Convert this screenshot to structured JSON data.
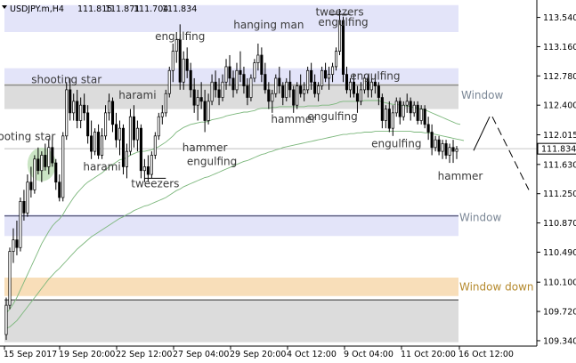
{
  "chart_data": {
    "type": "candlestick",
    "symbol_label": "USDJPY.m,H4",
    "ohlc_header": {
      "open": "111.815",
      "high": "111.871",
      "low": "111.704",
      "close": "111.834"
    },
    "price_label": "111.834",
    "last_price": 111.834,
    "y_ticks": [
      "113.540",
      "113.160",
      "112.780",
      "112.400",
      "112.015",
      "111.630",
      "111.250",
      "110.870",
      "110.490",
      "110.100",
      "109.720",
      "109.340"
    ],
    "ylim": [
      109.27,
      113.72
    ],
    "x_ticks": [
      "15 Sep 2017",
      "19 Sep 20:00",
      "22 Sep 12:00",
      "27 Sep 04:00",
      "29 Sep 20:00",
      "4 Oct 12:00",
      "9 Oct 04:00",
      "11 Oct 20:00",
      "16 Oct 12:00"
    ],
    "zones": [
      {
        "type": "blue",
        "from": 113.35,
        "to": 113.7
      },
      {
        "type": "blue",
        "from": 112.62,
        "to": 112.88
      },
      {
        "type": "gray",
        "from": 112.35,
        "to": 112.68,
        "label": "Window"
      },
      {
        "type": "blue",
        "from": 110.7,
        "to": 110.98,
        "label": "Window"
      },
      {
        "type": "orange",
        "from": 109.92,
        "to": 110.16,
        "label": "Window down"
      },
      {
        "type": "gray",
        "from": 109.32,
        "to": 109.88
      }
    ],
    "labels": {
      "window_upper": "Window",
      "window_lower": "Window",
      "window_down": "Window down"
    },
    "patterns": [
      {
        "text": "shooting star",
        "bar": 4,
        "price": 111.99
      },
      {
        "text": "shooting star",
        "bar": 17,
        "price": 112.73
      },
      {
        "text": "harami",
        "bar": 27,
        "price": 111.6
      },
      {
        "text": "harami",
        "bar": 37,
        "price": 112.53
      },
      {
        "text": "tweezers",
        "bar": 42,
        "price": 111.38
      },
      {
        "text": "engulfing",
        "bar": 49,
        "price": 113.29
      },
      {
        "text": "hammer",
        "bar": 56,
        "price": 111.85
      },
      {
        "text": "engulfing",
        "bar": 58,
        "price": 111.67
      },
      {
        "text": "hanging man",
        "bar": 74,
        "price": 113.44
      },
      {
        "text": "hammer",
        "bar": 81,
        "price": 112.22
      },
      {
        "text": "tweezers",
        "bar": 94,
        "price": 113.61
      },
      {
        "text": "engulfing",
        "bar": 95,
        "price": 113.48
      },
      {
        "text": "engulfing",
        "bar": 92,
        "price": 112.25
      },
      {
        "text": "engulfing",
        "bar": 104,
        "price": 112.78
      },
      {
        "text": "engulfing",
        "bar": 110,
        "price": 111.9
      },
      {
        "text": "hammer",
        "bar": 128,
        "price": 111.48
      }
    ],
    "candles": [
      [
        109.42,
        109.9,
        109.35,
        109.8
      ],
      [
        109.8,
        110.55,
        109.75,
        110.5
      ],
      [
        110.5,
        110.8,
        110.35,
        110.65
      ],
      [
        110.65,
        110.9,
        110.45,
        110.55
      ],
      [
        110.55,
        111.2,
        110.5,
        111.15
      ],
      [
        111.15,
        111.3,
        110.9,
        111
      ],
      [
        111,
        111.5,
        110.95,
        111.4
      ],
      [
        111.4,
        111.6,
        111.2,
        111.3
      ],
      [
        111.3,
        111.75,
        111.25,
        111.7
      ],
      [
        111.7,
        111.85,
        111.5,
        111.55
      ],
      [
        111.55,
        111.8,
        111.4,
        111.75
      ],
      [
        111.75,
        111.9,
        111.55,
        111.6
      ],
      [
        111.6,
        111.95,
        111.5,
        111.85
      ],
      [
        111.85,
        112,
        111.6,
        111.65
      ],
      [
        111.65,
        111.7,
        111.3,
        111.4
      ],
      [
        111.4,
        111.5,
        111.15,
        111.2
      ],
      [
        111.2,
        112.05,
        111.15,
        112
      ],
      [
        112,
        112.7,
        111.95,
        112.6
      ],
      [
        112.6,
        112.75,
        112.2,
        112.3
      ],
      [
        112.3,
        112.55,
        112.2,
        112.45
      ],
      [
        112.45,
        112.6,
        112.1,
        112.2
      ],
      [
        112.2,
        112.5,
        112.1,
        112.4
      ],
      [
        112.4,
        112.55,
        112.2,
        112.3
      ],
      [
        112.3,
        112.4,
        111.9,
        112
      ],
      [
        112,
        112.2,
        111.7,
        111.8
      ],
      [
        111.8,
        112.1,
        111.75,
        112.05
      ],
      [
        112.05,
        112.15,
        111.7,
        111.75
      ],
      [
        111.75,
        112.1,
        111.7,
        112
      ],
      [
        112,
        112.4,
        111.95,
        112.3
      ],
      [
        112.3,
        112.55,
        112.2,
        112.45
      ],
      [
        112.45,
        112.5,
        112.05,
        112.15
      ],
      [
        112.15,
        112.3,
        111.85,
        111.95
      ],
      [
        111.95,
        112.2,
        111.75,
        112.1
      ],
      [
        112.1,
        112.15,
        111.5,
        111.6
      ],
      [
        111.6,
        111.9,
        111.45,
        111.8
      ],
      [
        111.8,
        112.35,
        111.75,
        112.25
      ],
      [
        112.25,
        112.4,
        111.85,
        111.95
      ],
      [
        111.95,
        112.2,
        111.8,
        112.1
      ],
      [
        112.1,
        112.15,
        111.45,
        111.55
      ],
      [
        111.55,
        111.7,
        111.4,
        111.6
      ],
      [
        111.6,
        111.75,
        111.4,
        111.5
      ],
      [
        111.5,
        111.8,
        111.45,
        111.75
      ],
      [
        111.75,
        112.05,
        111.7,
        112
      ],
      [
        112,
        112.3,
        111.95,
        112.25
      ],
      [
        112.25,
        112.4,
        112.15,
        112.3
      ],
      [
        112.3,
        112.6,
        112.25,
        112.55
      ],
      [
        112.55,
        112.9,
        112.5,
        112.85
      ],
      [
        112.85,
        113.2,
        112.7,
        113.1
      ],
      [
        113.1,
        113.35,
        112.95,
        113.25
      ],
      [
        113.25,
        113.45,
        112.6,
        112.7
      ],
      [
        112.7,
        113.1,
        112.6,
        113
      ],
      [
        113,
        113.15,
        112.75,
        112.85
      ],
      [
        112.85,
        112.95,
        112.5,
        112.6
      ],
      [
        112.6,
        112.75,
        112.3,
        112.4
      ],
      [
        112.4,
        112.6,
        112.2,
        112.5
      ],
      [
        112.5,
        112.7,
        112.35,
        112.45
      ],
      [
        112.45,
        112.6,
        112.05,
        112.2
      ],
      [
        112.2,
        112.55,
        112.15,
        112.45
      ],
      [
        112.45,
        112.8,
        112.4,
        112.7
      ],
      [
        112.7,
        112.85,
        112.5,
        112.6
      ],
      [
        112.6,
        112.75,
        112.4,
        112.5
      ],
      [
        112.5,
        112.8,
        112.45,
        112.7
      ],
      [
        112.7,
        113,
        112.6,
        112.9
      ],
      [
        112.9,
        113.05,
        112.65,
        112.75
      ],
      [
        112.75,
        112.85,
        112.5,
        112.6
      ],
      [
        112.6,
        112.95,
        112.55,
        112.85
      ],
      [
        112.85,
        113.1,
        112.7,
        112.8
      ],
      [
        112.8,
        112.9,
        112.55,
        112.65
      ],
      [
        112.65,
        112.75,
        112.4,
        112.5
      ],
      [
        112.5,
        112.8,
        112.45,
        112.75
      ],
      [
        112.75,
        113,
        112.7,
        112.95
      ],
      [
        112.95,
        113.2,
        112.85,
        113.05
      ],
      [
        113.05,
        113.15,
        112.7,
        112.8
      ],
      [
        112.8,
        112.95,
        112.55,
        112.6
      ],
      [
        112.6,
        112.7,
        112.35,
        112.45
      ],
      [
        112.45,
        112.6,
        112.3,
        112.55
      ],
      [
        112.55,
        112.8,
        112.5,
        112.75
      ],
      [
        112.75,
        112.9,
        112.55,
        112.65
      ],
      [
        112.65,
        112.7,
        112.4,
        112.5
      ],
      [
        112.5,
        112.75,
        112.45,
        112.7
      ],
      [
        112.7,
        112.85,
        112.5,
        112.6
      ],
      [
        112.6,
        112.65,
        112.3,
        112.4
      ],
      [
        112.4,
        112.7,
        112.35,
        112.65
      ],
      [
        112.65,
        112.8,
        112.5,
        112.55
      ],
      [
        112.55,
        112.7,
        112.45,
        112.6
      ],
      [
        112.6,
        112.9,
        112.55,
        112.85
      ],
      [
        112.85,
        112.95,
        112.6,
        112.7
      ],
      [
        112.7,
        112.8,
        112.5,
        112.55
      ],
      [
        112.55,
        112.7,
        112.45,
        112.65
      ],
      [
        112.65,
        112.9,
        112.6,
        112.85
      ],
      [
        112.85,
        112.95,
        112.7,
        112.75
      ],
      [
        112.75,
        112.9,
        112.6,
        112.8
      ],
      [
        112.8,
        112.95,
        112.7,
        112.9
      ],
      [
        112.9,
        113.15,
        112.85,
        113.1
      ],
      [
        113.1,
        113.65,
        113.05,
        113.5
      ],
      [
        113.5,
        113.55,
        112.7,
        112.8
      ],
      [
        112.8,
        112.9,
        112.55,
        112.6
      ],
      [
        112.6,
        112.75,
        112.5,
        112.7
      ],
      [
        112.7,
        112.8,
        112.5,
        112.55
      ],
      [
        112.55,
        112.65,
        112.3,
        112.45
      ],
      [
        112.45,
        112.7,
        112.4,
        112.6
      ],
      [
        112.6,
        112.8,
        112.55,
        112.75
      ],
      [
        112.75,
        112.8,
        112.5,
        112.6
      ],
      [
        112.6,
        112.75,
        112.5,
        112.7
      ],
      [
        112.7,
        112.8,
        112.55,
        112.65
      ],
      [
        112.65,
        112.7,
        112.4,
        112.5
      ],
      [
        112.5,
        112.55,
        112.1,
        112.2
      ],
      [
        112.2,
        112.4,
        112.1,
        112.35
      ],
      [
        112.35,
        112.45,
        112.05,
        112.1
      ],
      [
        112.1,
        112.4,
        112,
        112.3
      ],
      [
        112.3,
        112.5,
        112.25,
        112.45
      ],
      [
        112.45,
        112.5,
        112.15,
        112.25
      ],
      [
        112.25,
        112.45,
        112.2,
        112.4
      ],
      [
        112.4,
        112.55,
        112.3,
        112.45
      ],
      [
        112.45,
        112.5,
        112.2,
        112.3
      ],
      [
        112.3,
        112.45,
        112.25,
        112.4
      ],
      [
        112.4,
        112.45,
        112.15,
        112.2
      ],
      [
        112.2,
        112.4,
        112.15,
        112.35
      ],
      [
        112.35,
        112.4,
        112.1,
        112.15
      ],
      [
        112.15,
        112.25,
        111.95,
        112.05
      ],
      [
        112.05,
        112.15,
        111.75,
        111.85
      ],
      [
        111.85,
        112,
        111.8,
        111.95
      ],
      [
        111.95,
        112,
        111.75,
        111.8
      ],
      [
        111.8,
        111.95,
        111.7,
        111.9
      ],
      [
        111.9,
        111.95,
        111.7,
        111.75
      ],
      [
        111.75,
        111.9,
        111.65,
        111.85
      ],
      [
        111.85,
        111.95,
        111.65,
        111.8
      ],
      [
        111.8,
        111.87,
        111.7,
        111.83
      ]
    ],
    "ma_fast": [
      109.7,
      109.75,
      109.82,
      109.9,
      110,
      110.1,
      110.2,
      110.3,
      110.4,
      110.5,
      110.6,
      110.68,
      110.76,
      110.83,
      110.88,
      110.92,
      110.98,
      111.06,
      111.13,
      111.2,
      111.26,
      111.31,
      111.36,
      111.4,
      111.43,
      111.46,
      111.49,
      111.52,
      111.56,
      111.6,
      111.63,
      111.66,
      111.69,
      111.7,
      111.72,
      111.75,
      111.77,
      111.79,
      111.8,
      111.8,
      111.81,
      111.82,
      111.84,
      111.86,
      111.89,
      111.92,
      111.96,
      112,
      112.05,
      112.08,
      112.11,
      112.13,
      112.15,
      112.16,
      112.17,
      112.18,
      112.18,
      112.19,
      112.21,
      112.22,
      112.23,
      112.24,
      112.26,
      112.27,
      112.28,
      112.29,
      112.3,
      112.31,
      112.31,
      112.32,
      112.33,
      112.35,
      112.36,
      112.36,
      112.36,
      112.37,
      112.37,
      112.38,
      112.38,
      112.38,
      112.38,
      112.38,
      112.38,
      112.38,
      112.38,
      112.39,
      112.39,
      112.39,
      112.39,
      112.4,
      112.4,
      112.4,
      112.41,
      112.42,
      112.44,
      112.45,
      112.45,
      112.45,
      112.45,
      112.45,
      112.45,
      112.46,
      112.46,
      112.46,
      112.46,
      112.46,
      112.44,
      112.43,
      112.42,
      112.41,
      112.41,
      112.4,
      112.39,
      112.39,
      112.38,
      112.37,
      112.36,
      112.35,
      112.34,
      112.32,
      112.3,
      112.28,
      112.26,
      112.24,
      112.22,
      112.2,
      112.18,
      112.16,
      112.15
    ],
    "ma_slow": [
      109.5,
      109.52,
      109.56,
      109.6,
      109.66,
      109.72,
      109.78,
      109.84,
      109.9,
      109.96,
      110.02,
      110.08,
      110.14,
      110.19,
      110.24,
      110.28,
      110.33,
      110.38,
      110.43,
      110.48,
      110.53,
      110.57,
      110.61,
      110.65,
      110.69,
      110.72,
      110.75,
      110.78,
      110.81,
      110.84,
      110.87,
      110.9,
      110.93,
      110.95,
      110.98,
      111,
      111.03,
      111.05,
      111.07,
      111.09,
      111.1,
      111.12,
      111.14,
      111.16,
      111.18,
      111.2,
      111.23,
      111.26,
      111.29,
      111.31,
      111.34,
      111.36,
      111.38,
      111.4,
      111.42,
      111.44,
      111.46,
      111.47,
      111.49,
      111.51,
      111.53,
      111.55,
      111.57,
      111.59,
      111.61,
      111.63,
      111.65,
      111.67,
      111.68,
      111.7,
      111.72,
      111.74,
      111.76,
      111.77,
      111.79,
      111.8,
      111.82,
      111.83,
      111.85,
      111.86,
      111.87,
      111.88,
      111.89,
      111.9,
      111.91,
      111.92,
      111.93,
      111.94,
      111.95,
      111.96,
      111.97,
      111.98,
      111.99,
      112,
      112.01,
      112.02,
      112.02,
      112.03,
      112.03,
      112.04,
      112.04,
      112.05,
      112.05,
      112.05,
      112.06,
      112.06,
      112.06,
      112.06,
      112.06,
      112.06,
      112.06,
      112.06,
      112.06,
      112.06,
      112.06,
      112.05,
      112.05,
      112.05,
      112.04,
      112.04,
      112.03,
      112.02,
      112.01,
      112,
      111.99,
      111.98,
      111.97,
      111.96,
      111.95,
      111.94
    ]
  }
}
